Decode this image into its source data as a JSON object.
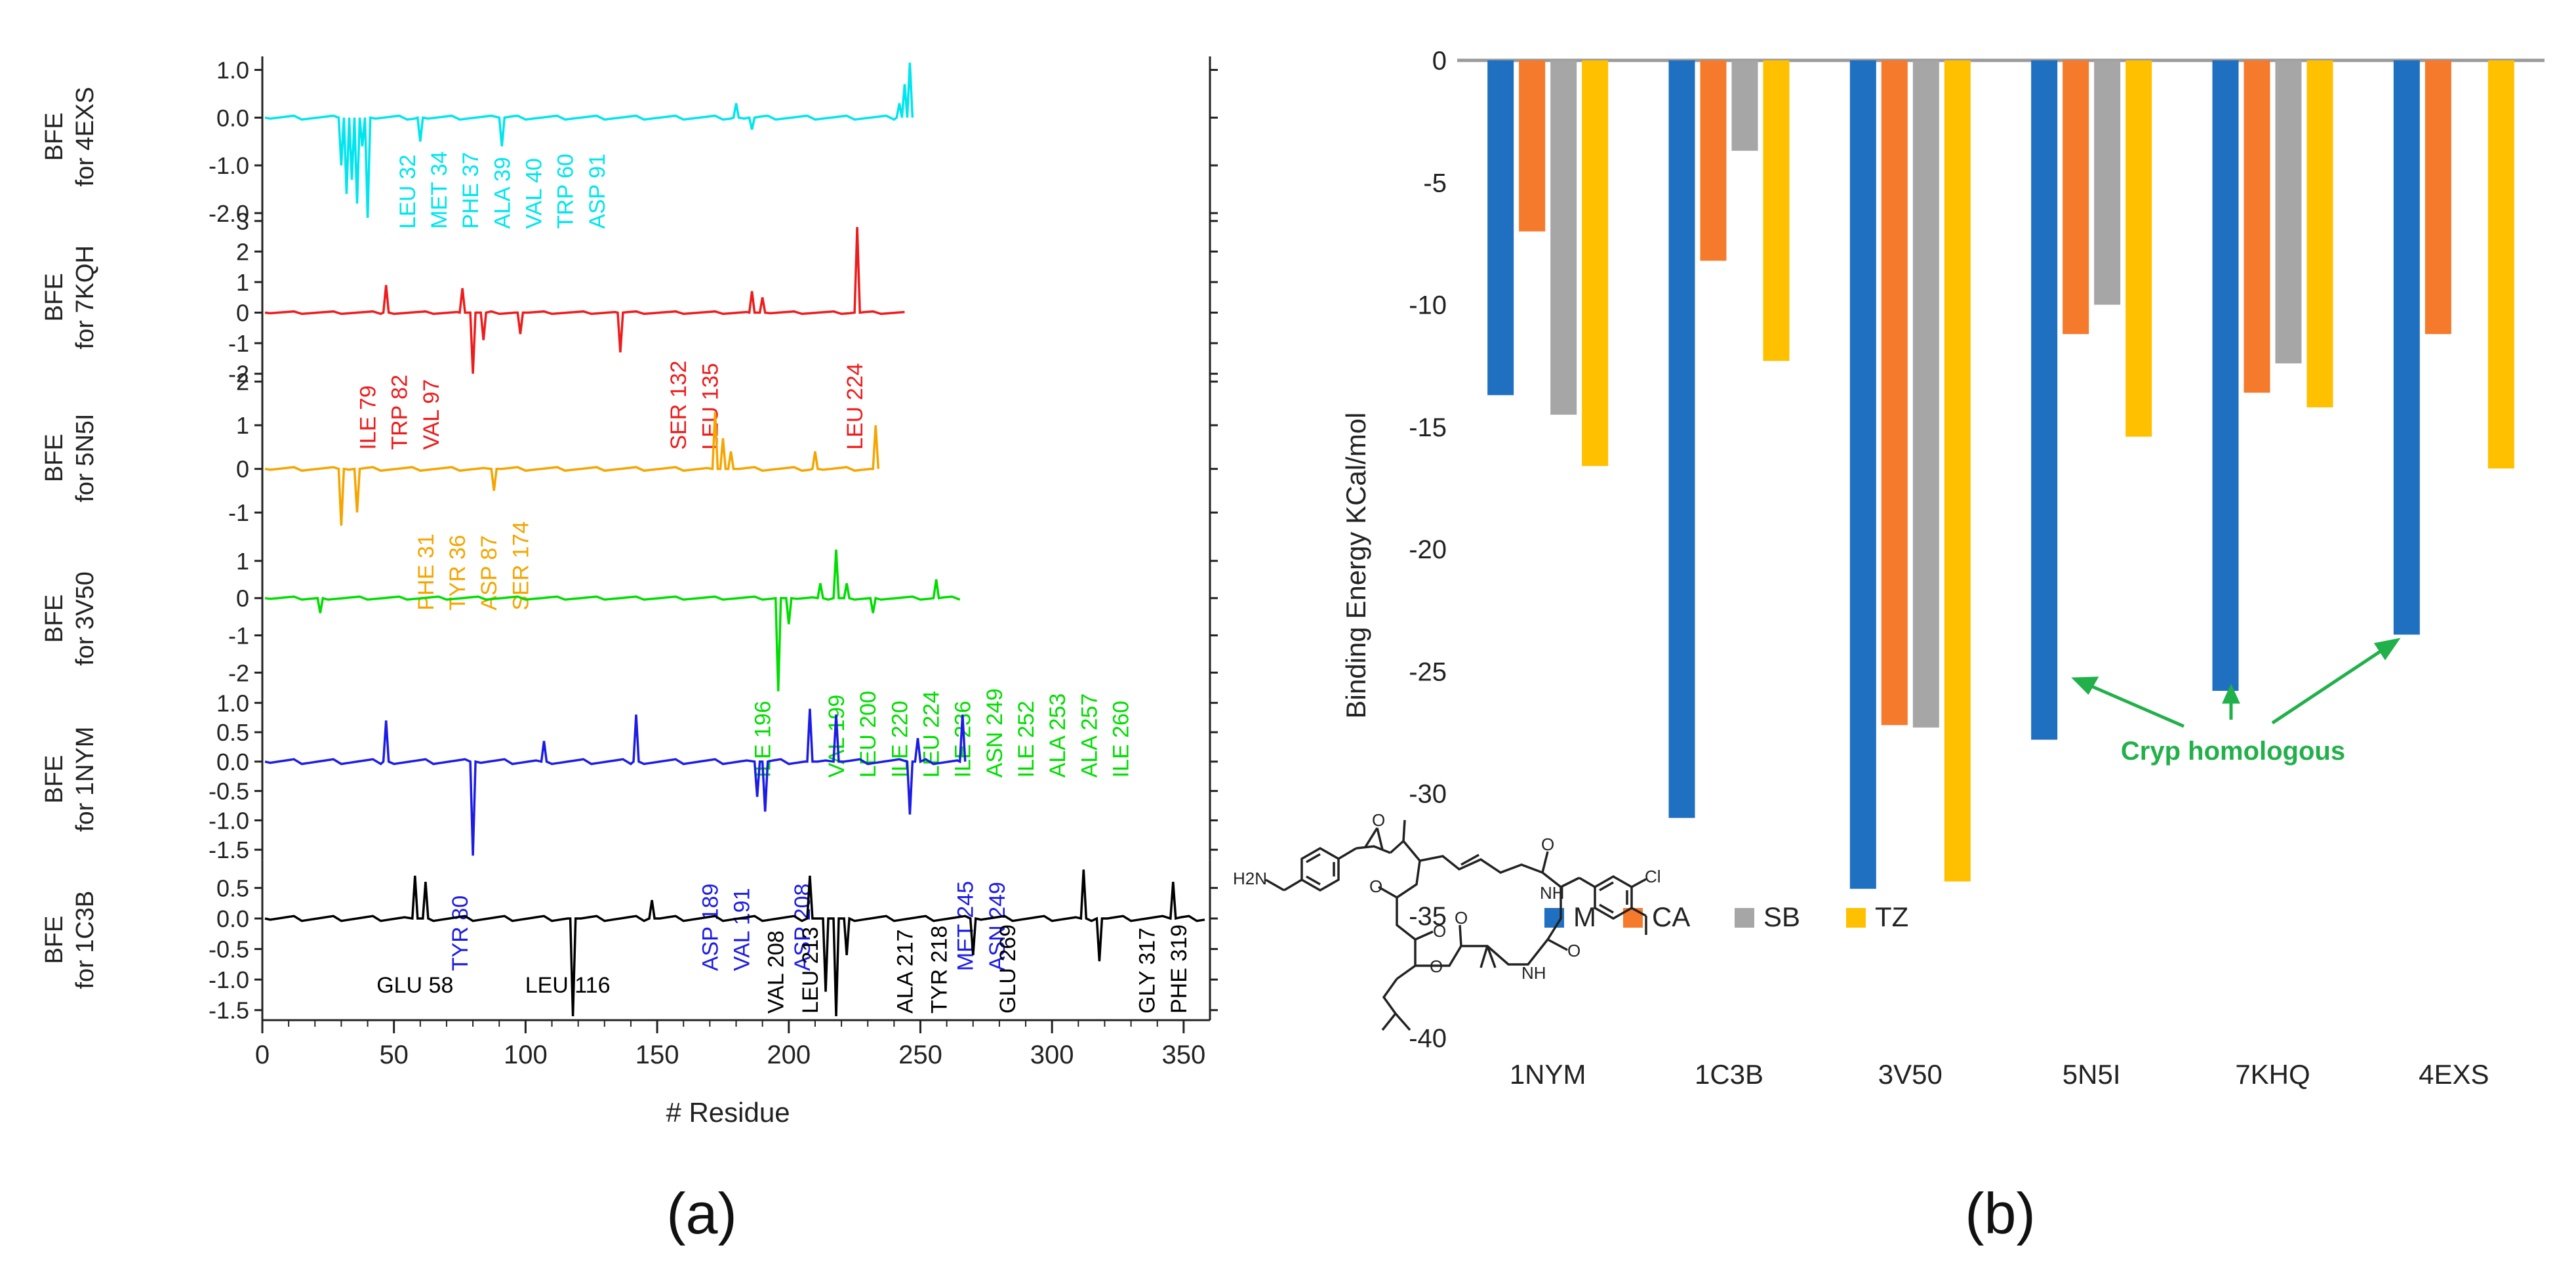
{
  "panel_a_label": "(a)",
  "panel_b_label": "(b)",
  "chart_data": [
    {
      "id": "a",
      "type": "line",
      "xlabel": "# Residue",
      "xlim": [
        0,
        360
      ],
      "xticks": [
        0,
        50,
        100,
        150,
        200,
        250,
        300,
        350
      ],
      "panels": [
        {
          "name": "4EXS",
          "ylabel1": "BFE",
          "ylabel2": "for 4EXS",
          "color": "#00e5ee",
          "ylim": [
            -2.0,
            1.2
          ],
          "yticks": [
            "1.0",
            "0.0",
            "-1.0",
            "-2.0"
          ],
          "ytick_values": [
            1.0,
            0.0,
            -1.0,
            -2.0
          ],
          "x_end": 248,
          "spikes": [
            [
              30,
              -1.0
            ],
            [
              32,
              -1.6
            ],
            [
              34,
              -1.3
            ],
            [
              36,
              -1.8
            ],
            [
              38,
              -0.6
            ],
            [
              40,
              -2.1
            ],
            [
              60,
              -0.5
            ],
            [
              91,
              -0.6
            ],
            [
              180,
              0.3
            ],
            [
              186,
              -0.25
            ],
            [
              242,
              0.3
            ],
            [
              244,
              0.7
            ],
            [
              246,
              1.15
            ]
          ],
          "labels": [
            "LEU 32",
            "MET 34",
            "PHE 37",
            "ALA 39",
            "VAL 40",
            "TRP 60",
            "ASP 91"
          ],
          "label_x": [
            55,
            67,
            79,
            91,
            103,
            115,
            127
          ]
        },
        {
          "name": "7KQH",
          "ylabel1": "BFE",
          "ylabel2": "for 7KQH",
          "color": "#ee1c1c",
          "ylim": [
            -2,
            3
          ],
          "yticks": [
            "3",
            "2",
            "1",
            "0",
            "-1",
            "-2"
          ],
          "ytick_values": [
            3,
            2,
            1,
            0,
            -1,
            -2
          ],
          "x_end": 245,
          "spikes": [
            [
              47,
              0.9
            ],
            [
              76,
              0.8
            ],
            [
              80,
              -2.0
            ],
            [
              84,
              -0.9
            ],
            [
              98,
              -0.7
            ],
            [
              136,
              -1.3
            ],
            [
              186,
              0.7
            ],
            [
              190,
              0.5
            ],
            [
              226,
              2.8
            ]
          ],
          "labels": [
            "ILE 79",
            "TRP 82",
            "VAL 97",
            "SER 132",
            "LEU 135",
            "LEU 224"
          ],
          "label_x": [
            40,
            52,
            64,
            158,
            170,
            225
          ]
        },
        {
          "name": "5N5I",
          "ylabel1": "BFE",
          "ylabel2": "for 5N5I",
          "color": "#f5a500",
          "ylim": [
            -1.5,
            2
          ],
          "yticks": [
            "2",
            "1",
            "0",
            "-1"
          ],
          "ytick_values": [
            2,
            1,
            0,
            -1
          ],
          "x_end": 235,
          "spikes": [
            [
              30,
              -1.3
            ],
            [
              36,
              -1.0
            ],
            [
              88,
              -0.5
            ],
            [
              172,
              1.3
            ],
            [
              175,
              0.7
            ],
            [
              178,
              0.4
            ],
            [
              210,
              0.4
            ],
            [
              233,
              1.0
            ]
          ],
          "labels": [
            "PHE 31",
            "TYR 36",
            "ASP 87",
            "SER 174"
          ],
          "label_x": [
            62,
            74,
            86,
            98
          ]
        },
        {
          "name": "3V50",
          "ylabel1": "BFE",
          "ylabel2": "for 3V50",
          "color": "#00dd00",
          "ylim": [
            -2.6,
            1.5
          ],
          "yticks": [
            "1",
            "0",
            "-1",
            "-2"
          ],
          "ytick_values": [
            1,
            0,
            -1,
            -2
          ],
          "x_end": 265,
          "spikes": [
            [
              22,
              -0.4
            ],
            [
              196,
              -2.5
            ],
            [
              200,
              -0.7
            ],
            [
              212,
              0.4
            ],
            [
              218,
              1.3
            ],
            [
              222,
              0.4
            ],
            [
              232,
              -0.4
            ],
            [
              256,
              0.5
            ]
          ],
          "labels": [
            "ILE 196",
            "VAL 199",
            "LEU 200",
            "ILE 220",
            "LEU 224",
            "ILE 236",
            "ASN 249",
            "ILE 252",
            "ALA 253",
            "ALA 257",
            "ILE 260"
          ],
          "label_x": [
            190,
            218,
            230,
            242,
            254,
            266,
            278,
            290,
            302,
            314,
            326
          ]
        },
        {
          "name": "1NYM",
          "ylabel1": "BFE",
          "ylabel2": "for 1NYM",
          "color": "#1c1ce6",
          "ylim": [
            -1.6,
            1.0
          ],
          "yticks": [
            "1.0",
            "0.5",
            "0.0",
            "-0.5",
            "-1.0",
            "-1.5"
          ],
          "ytick_values": [
            1.0,
            0.5,
            0.0,
            -0.5,
            -1.0,
            -1.5
          ],
          "x_end": 268,
          "spikes": [
            [
              47,
              0.7
            ],
            [
              80,
              -1.6
            ],
            [
              107,
              0.35
            ],
            [
              142,
              0.8
            ],
            [
              188,
              -0.6
            ],
            [
              191,
              -0.85
            ],
            [
              208,
              0.9
            ],
            [
              218,
              0.8
            ],
            [
              246,
              -0.9
            ],
            [
              249,
              0.4
            ],
            [
              266,
              0.8
            ]
          ],
          "labels": [
            "TYR 80",
            "ASP 189",
            "VAL 191",
            "ASP 208",
            "MET 245",
            "ASN 249"
          ],
          "label_x": [
            75,
            170,
            182,
            205,
            267,
            279
          ]
        },
        {
          "name": "1C3B",
          "ylabel1": "BFE",
          "ylabel2": "for 1C3B",
          "color": "#000000",
          "ylim": [
            -1.6,
            0.9
          ],
          "yticks": [
            "0.5",
            "0.0",
            "-0.5",
            "-1.0",
            "-1.5"
          ],
          "ytick_values": [
            0.5,
            0.0,
            -0.5,
            -1.0,
            -1.5
          ],
          "x_end": 360,
          "spikes": [
            [
              58,
              0.7
            ],
            [
              62,
              0.6
            ],
            [
              118,
              -1.6
            ],
            [
              148,
              0.3
            ],
            [
              208,
              0.7
            ],
            [
              214,
              -1.2
            ],
            [
              218,
              -1.6
            ],
            [
              222,
              -0.6
            ],
            [
              270,
              -0.6
            ],
            [
              312,
              0.8
            ],
            [
              318,
              -0.7
            ],
            [
              346,
              0.6
            ]
          ],
          "labels": [
            "GLU 58",
            "LEU 116",
            "VAL 208",
            "LEU 213",
            "ALA 217",
            "TYR 218",
            "GLU 269",
            "GLY 317",
            "PHE 319"
          ],
          "label_x": [
            58,
            116,
            195,
            208,
            244,
            257,
            283,
            336,
            348
          ]
        }
      ]
    },
    {
      "id": "b",
      "type": "bar",
      "categories": [
        "1NYM",
        "1C3B",
        "3V50",
        "5N5I",
        "7KHQ",
        "4EXS"
      ],
      "series": [
        {
          "name": "M",
          "color": "#1f70c1",
          "values": [
            -13.7,
            -31.0,
            -33.9,
            -27.8,
            -25.8,
            -23.5
          ]
        },
        {
          "name": "CA",
          "color": "#f57a2b",
          "values": [
            -7.0,
            -8.2,
            -27.2,
            -11.2,
            -13.6,
            -11.2
          ]
        },
        {
          "name": "SB",
          "color": "#a6a6a6",
          "values": [
            -14.5,
            -3.7,
            -27.3,
            -10.0,
            -12.4,
            0
          ]
        },
        {
          "name": "TZ",
          "color": "#ffc000",
          "values": [
            -16.6,
            -12.3,
            -33.6,
            -15.4,
            -14.2,
            -16.7
          ]
        }
      ],
      "ylabel": "Binding Energy KCal/mol",
      "ylim": [
        -40,
        0
      ],
      "yticks": [
        0,
        -5,
        -10,
        -15,
        -20,
        -25,
        -30,
        -35,
        -40
      ],
      "annotation": "Cryp homologous",
      "annotation_color": "#22b04a",
      "molecule_labels": [
        "H2N",
        "O",
        "O",
        "O",
        "O",
        "O",
        "O",
        "O",
        "NH",
        "NH",
        "Cl"
      ]
    }
  ]
}
